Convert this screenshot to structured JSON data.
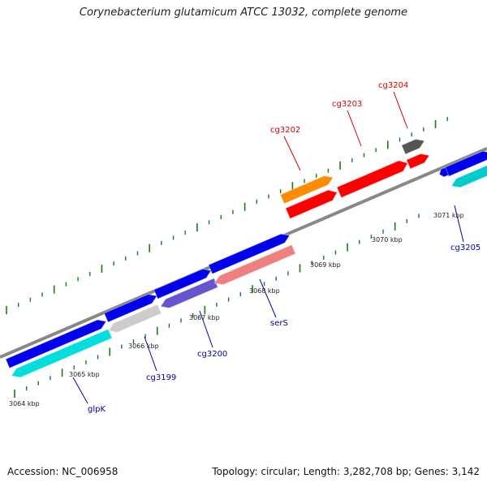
{
  "title": "Corynebacterium glutamicum ATCC 13032, complete genome",
  "footer": {
    "accession": "Accession: NC_006958",
    "summary": "Topology: circular; Length: 3,282,708 bp; Genes: 3,142"
  },
  "colors": {
    "backbone": "#888888",
    "tick": "#1a7a1a",
    "label_forward": "#d40000",
    "label_reverse": "#0000aa"
  },
  "scale_ticks": [
    "3064 kbp",
    "3065 kbp",
    "3066 kbp",
    "3067 kbp",
    "3068 kbp",
    "3069 kbp",
    "3070 kbp",
    "3071 kbp"
  ],
  "features": [
    {
      "track": "outer",
      "color": "#ff8c00"
    },
    {
      "track": "outer",
      "color": "#ff0000"
    },
    {
      "track": "outer",
      "color": "#ff0000"
    },
    {
      "track": "outer",
      "color": "#ff0000"
    },
    {
      "track": "outer",
      "color": "#555555"
    },
    {
      "track": "inner-forward",
      "color": "#0000ee"
    },
    {
      "track": "inner-forward",
      "color": "#0000ee"
    },
    {
      "track": "inner-forward",
      "color": "#0000ee"
    },
    {
      "track": "inner-forward",
      "color": "#0000ee"
    },
    {
      "track": "inner-forward",
      "color": "#0000ee"
    },
    {
      "track": "inner-forward",
      "color": "#0000ee"
    },
    {
      "track": "inner-reverse",
      "color": "#00dddd"
    },
    {
      "track": "inner-reverse",
      "color": "#cccccc"
    },
    {
      "track": "inner-reverse",
      "color": "#6655cc"
    },
    {
      "track": "inner-reverse",
      "color": "#f08080"
    },
    {
      "track": "inner-reverse",
      "color": "#00cccc"
    }
  ],
  "gene_labels": [
    {
      "text": "cg3202",
      "strand": "forward"
    },
    {
      "text": "cg3203",
      "strand": "forward"
    },
    {
      "text": "cg3204",
      "strand": "forward"
    },
    {
      "text": "glpK",
      "strand": "reverse"
    },
    {
      "text": "cg3199",
      "strand": "reverse"
    },
    {
      "text": "cg3200",
      "strand": "reverse"
    },
    {
      "text": "serS",
      "strand": "reverse"
    },
    {
      "text": "cg3205",
      "strand": "reverse"
    }
  ]
}
